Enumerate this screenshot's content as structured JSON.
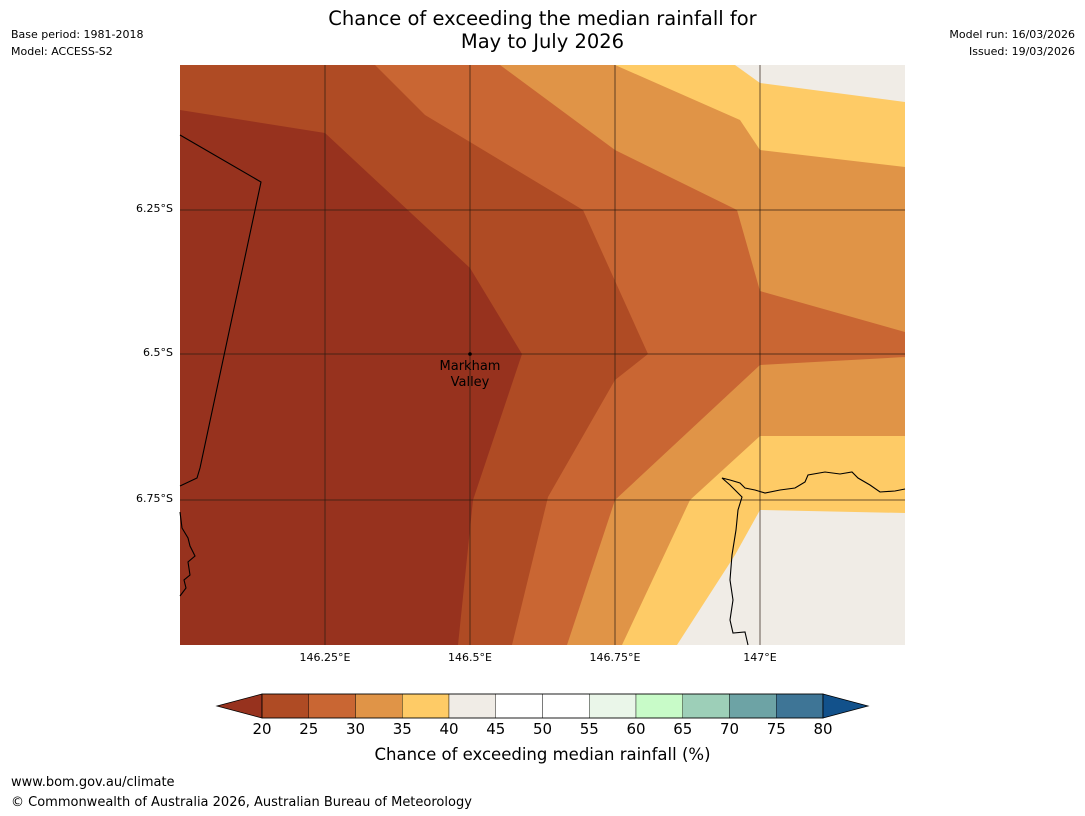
{
  "title": {
    "line1": "Chance of exceeding the median rainfall for",
    "line2": "May to July 2026"
  },
  "meta_left": {
    "base_period": "Base period: 1981-2018",
    "model": "Model: ACCESS-S2"
  },
  "meta_right": {
    "model_run": "Model run: 16/03/2026",
    "issued": "Issued: 19/03/2026"
  },
  "map": {
    "lat_labels": [
      "6.25°S",
      "6.5°S",
      "6.75°S"
    ],
    "lon_labels": [
      "146.25°E",
      "146.5°E",
      "146.75°E",
      "147°E"
    ],
    "place_label": {
      "line1": "Markham",
      "line2": "Valley"
    },
    "band_colors": {
      "20-25": "#97321e",
      "25-30": "#af4b24",
      "30-35": "#c96633",
      "35-40": "#e09447",
      "40-45": "#fecb66",
      "45-50": "#f0ece6"
    }
  },
  "colorbar": {
    "ticks": [
      "20",
      "25",
      "30",
      "35",
      "40",
      "45",
      "50",
      "55",
      "60",
      "65",
      "70",
      "75",
      "80"
    ],
    "colors": [
      "#97321e",
      "#af4b24",
      "#c96633",
      "#e09447",
      "#fecb66",
      "#f0ece6",
      "#ffffff",
      "#ffffff",
      "#eaf6e9",
      "#c8fbc8",
      "#9dcfb8",
      "#6da3a5",
      "#3e7596",
      "#12518b"
    ],
    "title": "Chance of exceeding median rainfall (%)"
  },
  "footer": {
    "url": "www.bom.gov.au/climate",
    "copyright": "© Commonwealth of Australia 2026, Australian Bureau of Meteorology"
  }
}
